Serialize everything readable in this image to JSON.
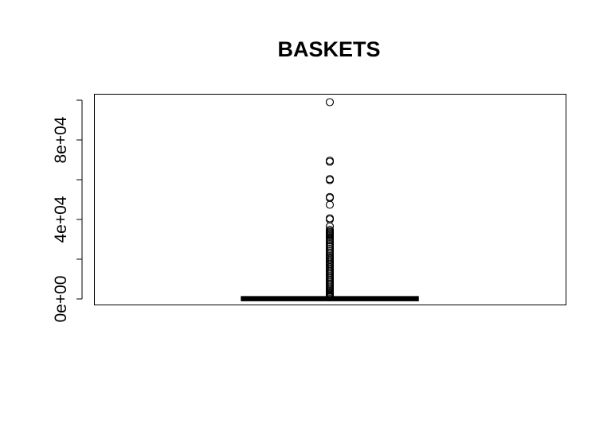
{
  "chart_data": {
    "type": "boxplot",
    "title": "BASKETS",
    "xlabel": "",
    "ylabel": "",
    "ylim": [
      -3000,
      103000
    ],
    "y_ticks": [
      0,
      20000,
      40000,
      60000,
      80000,
      100000
    ],
    "y_tick_labels": [
      {
        "value": 0,
        "label": "0e+00"
      },
      {
        "value": 40000,
        "label": "4e+04"
      },
      {
        "value": 80000,
        "label": "8e+04"
      }
    ],
    "grid": false,
    "legend": "none",
    "box": {
      "min": 0,
      "q1": 60,
      "median": 150,
      "q3": 300,
      "whisker_high": 650
    },
    "outliers": [
      99000,
      69600,
      69000,
      60300,
      59800,
      51300,
      50800,
      47400,
      40600,
      40000,
      36500,
      34800,
      34100,
      33600,
      33100,
      32600,
      32100,
      31600,
      30900,
      30100,
      29400,
      28600,
      27600,
      26800,
      26100,
      25200,
      24300,
      23400,
      22600,
      21800,
      21100,
      20400,
      19700,
      18900,
      18200,
      17500,
      16800,
      16000,
      15300,
      14600,
      13900,
      13200,
      12500,
      11800,
      11100,
      10400,
      9700,
      9000,
      8300,
      7600,
      6900,
      6200,
      5500,
      4800,
      4200,
      3600,
      3000,
      2500,
      2000,
      1600,
      1200,
      900
    ]
  }
}
